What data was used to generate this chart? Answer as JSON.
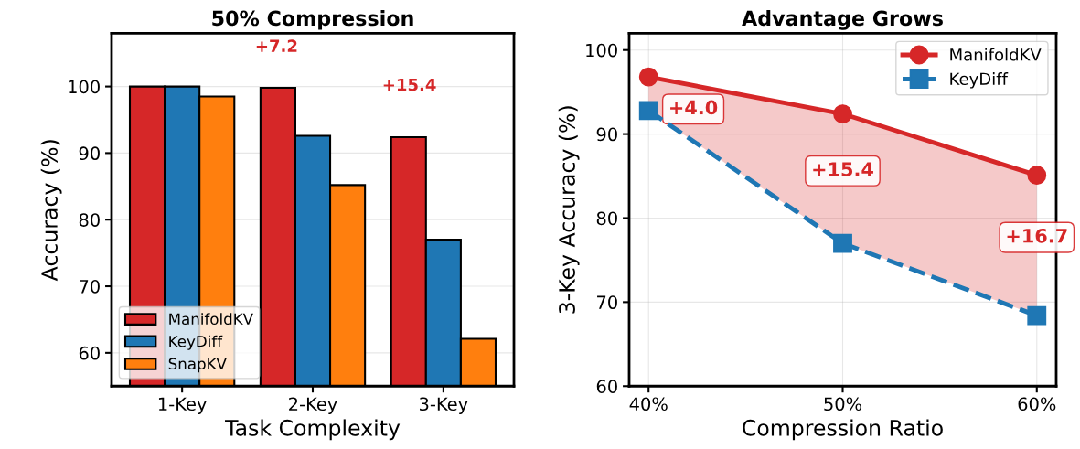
{
  "chart_data": [
    {
      "type": "bar",
      "title": "50% Compression",
      "xlabel": "Task Complexity",
      "ylabel": "Accuracy (%)",
      "categories": [
        "1-Key",
        "2-Key",
        "3-Key"
      ],
      "series": [
        {
          "name": "ManifoldKV",
          "color": "#d62728",
          "values": [
            100.0,
            99.8,
            92.4
          ]
        },
        {
          "name": "KeyDiff",
          "color": "#1f77b4",
          "values": [
            100.0,
            92.6,
            77.0
          ]
        },
        {
          "name": "SnapKV",
          "color": "#ff7f0e",
          "values": [
            98.5,
            85.2,
            62.1
          ]
        }
      ],
      "ylim": [
        55,
        108
      ],
      "yticks": [
        60,
        70,
        80,
        90,
        100
      ],
      "grid": "y",
      "legend": "bottom left",
      "annotations": [
        "+7.2",
        "+15.4"
      ]
    },
    {
      "type": "line",
      "title": "Advantage Grows",
      "xlabel": "Compression Ratio",
      "ylabel": "3-Key Accuracy (%)",
      "x": [
        40,
        50,
        60
      ],
      "series": [
        {
          "name": "ManifoldKV",
          "color": "#d62728",
          "values": [
            96.8,
            92.4,
            85.1
          ],
          "marker": "circle",
          "line_style": "solid",
          "lower": [
            92.8,
            77.0,
            68.4
          ],
          "upper": [
            96.8,
            92.4,
            85.1
          ]
        },
        {
          "name": "KeyDiff",
          "color": "#1f77b4",
          "values": [
            92.8,
            77.0,
            68.4
          ],
          "marker": "square",
          "line_style": "dashed"
        }
      ],
      "xlim": [
        39,
        61
      ],
      "xticks": [
        {
          "value": 40,
          "label": "40%"
        },
        {
          "value": 50,
          "label": "50%"
        },
        {
          "value": 60,
          "label": "60%"
        }
      ],
      "ylim": [
        60,
        102
      ],
      "yticks": [
        60,
        70,
        80,
        90,
        100
      ],
      "grid": true,
      "legend": "top right",
      "annotations": [
        "+4.0",
        "+15.4",
        {
          "text": "+16.7",
          "x": 60,
          "y": 77.7
        }
      ]
    }
  ]
}
